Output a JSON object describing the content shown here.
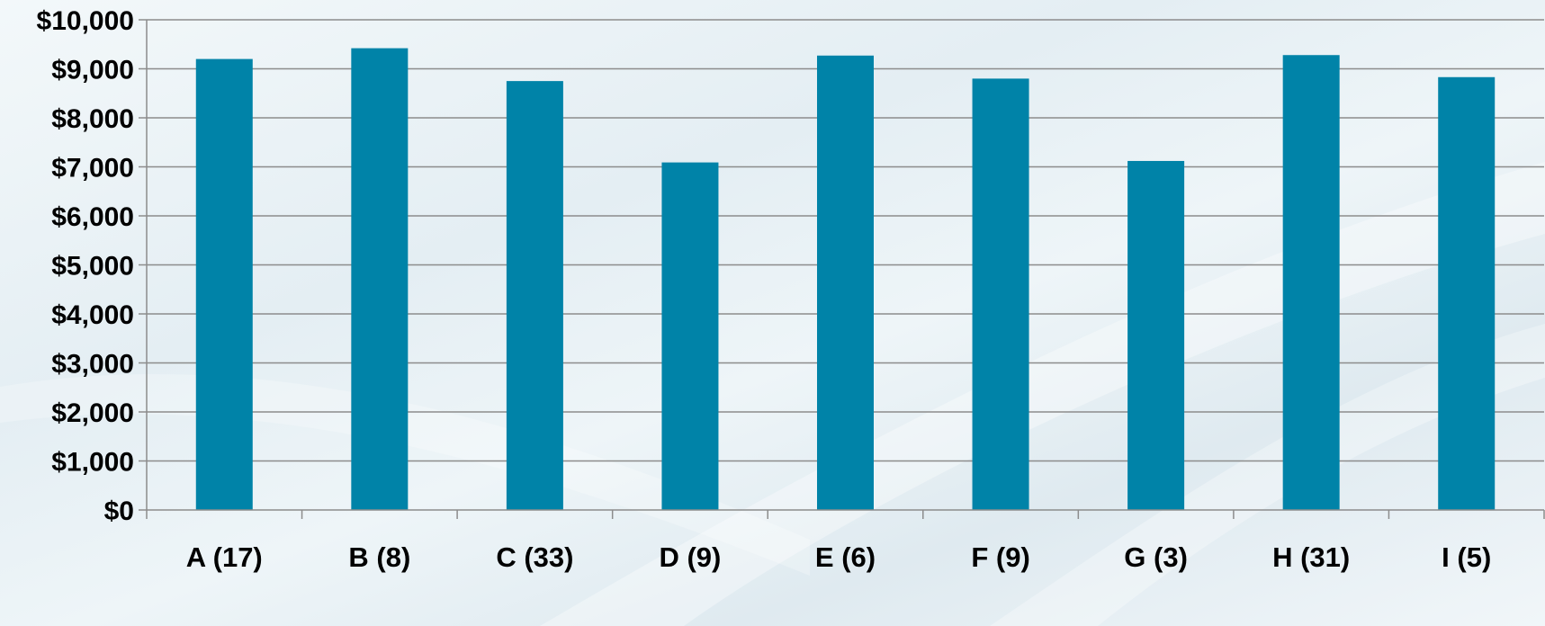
{
  "chart_data": {
    "type": "bar",
    "title": "",
    "xlabel": "",
    "ylabel": "",
    "categories": [
      "A (17)",
      "B (8)",
      "C (33)",
      "D (9)",
      "E (6)",
      "F (9)",
      "G (3)",
      "H (31)",
      "I (5)"
    ],
    "values": [
      9200,
      9420,
      8750,
      7090,
      9270,
      8800,
      7120,
      9280,
      8830
    ],
    "ylim": [
      0,
      10000
    ],
    "yticks": [
      0,
      1000,
      2000,
      3000,
      4000,
      5000,
      6000,
      7000,
      8000,
      9000,
      10000
    ],
    "ytick_labels": [
      "$0",
      "$1,000",
      "$2,000",
      "$3,000",
      "$4,000",
      "$5,000",
      "$6,000",
      "$7,000",
      "$8,000",
      "$9,000",
      "$10,000"
    ],
    "grid": true,
    "legend": "none",
    "colors": {
      "bar": "#0083a8",
      "grid": "#8c8c8c",
      "axis": "#8c8c8c",
      "text": "#000000"
    }
  }
}
